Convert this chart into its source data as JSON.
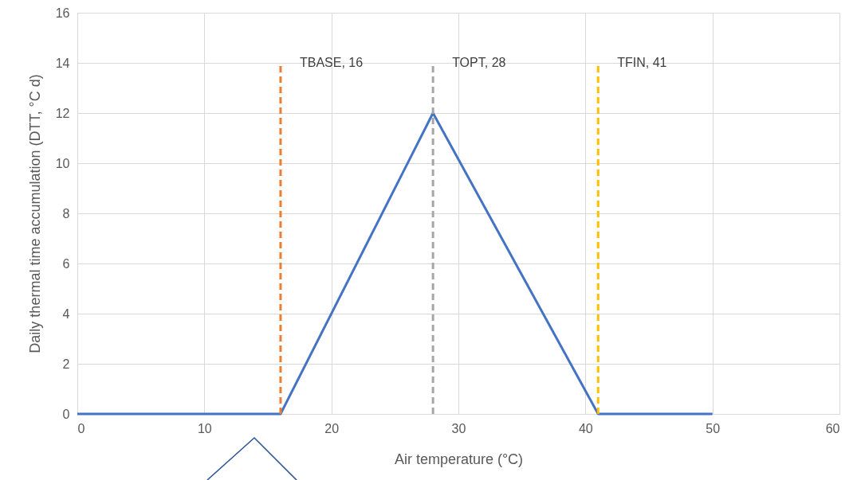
{
  "chart_data": {
    "type": "line",
    "xlabel": "Air temperature (°C)",
    "ylabel": "Daily thermal time accumulation (DTT, °C d)",
    "xlim": [
      0,
      60
    ],
    "xticks": [
      0,
      10,
      20,
      30,
      40,
      50,
      60
    ],
    "ylim": [
      0,
      16
    ],
    "yticks": [
      0,
      2,
      4,
      6,
      8,
      10,
      12,
      14,
      16
    ],
    "grid": true,
    "marker": "none",
    "series": [
      {
        "color": "#4472c4",
        "line_style": "solid",
        "x": [
          0,
          16,
          28,
          41,
          50
        ],
        "values": [
          0,
          0,
          12,
          0,
          0
        ]
      },
      {
        "name": "TBASE, 16",
        "type": "line",
        "color": "#ed7d31",
        "line_style": "dashed",
        "x": [
          16,
          16
        ],
        "values": [
          0,
          14
        ]
      },
      {
        "name": "TOPT, 28",
        "type": "line",
        "color": "#a5a5a5",
        "line_style": "dashed",
        "x": [
          28,
          28
        ],
        "values": [
          0,
          14
        ]
      },
      {
        "name": "TFIN, 41",
        "type": "line",
        "color": "#ffc000",
        "line_style": "dashed",
        "x": [
          41,
          41
        ],
        "values": [
          0,
          14
        ]
      }
    ]
  }
}
